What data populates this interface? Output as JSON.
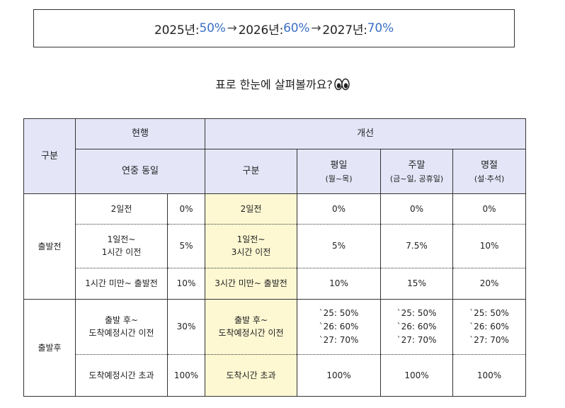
{
  "summary": {
    "y2025_label": "2025년: ",
    "y2025_value": "50%",
    "arrow1": "→",
    "y2026_label": "2026년: ",
    "y2026_value": "60%",
    "arrow2": "→",
    "y2027_label": "2027년: ",
    "y2027_value": "70%"
  },
  "subtitle": "표로 한눈에 살펴볼까요?",
  "table": {
    "h_category": "구분",
    "h_current": "현행",
    "h_improved": "개선",
    "h_current_sub": "연중 동일",
    "h_improved_category": "구분",
    "h_weekday": "평일",
    "h_weekday_sub": "(월~목)",
    "h_weekend": "주말",
    "h_weekend_sub": "(금~일, 공휴일)",
    "h_holiday": "명절",
    "h_holiday_sub": "(설·추석)",
    "group_before": "출발전",
    "group_after": "출발후",
    "rows": [
      {
        "cur_line1": "2일전",
        "cur_line2": "",
        "cur_pct": "0%",
        "new_line1": "2일전",
        "new_line2": "",
        "wd1": "0%",
        "wd2": "",
        "wd3": "",
        "we1": "0%",
        "we2": "",
        "we3": "",
        "ho1": "0%",
        "ho2": "",
        "ho3": ""
      },
      {
        "cur_line1": "1일전~",
        "cur_line2": "1시간 이전",
        "cur_pct": "5%",
        "new_line1": "1일전~",
        "new_line2": "3시간 이전",
        "wd1": "5%",
        "wd2": "",
        "wd3": "",
        "we1": "7.5%",
        "we2": "",
        "we3": "",
        "ho1": "10%",
        "ho2": "",
        "ho3": ""
      },
      {
        "cur_line1": "1시간 미만~ 출발전",
        "cur_line2": "",
        "cur_pct": "10%",
        "new_line1": "3시간 미만~ 출발전",
        "new_line2": "",
        "wd1": "10%",
        "wd2": "",
        "wd3": "",
        "we1": "15%",
        "we2": "",
        "we3": "",
        "ho1": "20%",
        "ho2": "",
        "ho3": ""
      },
      {
        "cur_line1": "출발 후~",
        "cur_line2": "도착예정시간 이전",
        "cur_pct": "30%",
        "new_line1": "출발 후~",
        "new_line2": "도착예정시간 이전",
        "wd1": "`25: 50%",
        "wd2": "`26: 60%",
        "wd3": "`27: 70%",
        "we1": "`25: 50%",
        "we2": "`26: 60%",
        "we3": "`27: 70%",
        "ho1": "`25: 50%",
        "ho2": "`26: 60%",
        "ho3": "`27: 70%"
      },
      {
        "cur_line1": "도착예정시간 초과",
        "cur_line2": "",
        "cur_pct": "100%",
        "new_line1": "도착시간 초과",
        "new_line2": "",
        "wd1": "100%",
        "wd2": "",
        "wd3": "",
        "we1": "100%",
        "we2": "",
        "we3": "",
        "ho1": "100%",
        "ho2": "",
        "ho3": ""
      }
    ]
  }
}
